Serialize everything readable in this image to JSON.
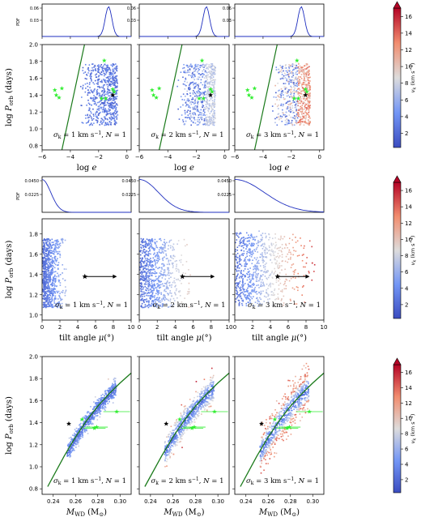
{
  "colors": {
    "low": "#3b4cc0",
    "mid": "#dddcdc",
    "high": "#b40426",
    "pdf_line": "#1f2fbf",
    "green_line": "#1a7a1a",
    "green_star": "#33ee33",
    "black_star": "#000000"
  },
  "colorbar": {
    "label": "v",
    "label_sub": "k",
    "label_unit": "(km s",
    "label_exp": "−1",
    "label_close": ")",
    "ticks": [
      "2",
      "4",
      "6",
      "8",
      "10",
      "12",
      "14",
      "16"
    ],
    "range": [
      0.3,
      17
    ]
  },
  "rows": [
    {
      "name": "eccentricity",
      "xlabel": {
        "main": "log",
        "var": "e"
      },
      "ylabel": {
        "main": "log",
        "var": "P",
        "sub": "orb",
        "unit": "(days)"
      },
      "pdf_label": "PDF",
      "pdf_ticks": [
        "0.06",
        "0.03"
      ],
      "yticks": [
        "2.0",
        "1.8",
        "1.6",
        "1.4",
        "1.2",
        "1.0",
        "0.8"
      ],
      "xticks": [
        "−6",
        "−4",
        "−2",
        "0"
      ],
      "pdf_xticks": [
        "",
        "",
        "",
        ""
      ]
    },
    {
      "name": "tilt",
      "xlabel": {
        "main": "tilt angle",
        "var": "μ",
        "unit": "(°)"
      },
      "ylabel": {
        "main": "log",
        "var": "P",
        "sub": "orb",
        "unit": "(days)"
      },
      "pdf_label": "PDF",
      "pdf_ticks": [
        "0.0450",
        "0.0225"
      ],
      "yticks": [
        "1.8",
        "1.6",
        "1.4",
        "1.2",
        "1.0"
      ],
      "xticks": [
        "0",
        "2",
        "4",
        "6",
        "8",
        "10"
      ]
    },
    {
      "name": "wd_mass",
      "xlabel": {
        "main": "M",
        "sub": "WD",
        "unit": "(M",
        "unit_sub": "⊙",
        "close": ")"
      },
      "ylabel": {
        "main": "log",
        "var": "P",
        "sub": "orb",
        "unit": "(days)"
      },
      "yticks": [
        "2.0",
        "1.8",
        "1.6",
        "1.4",
        "1.2",
        "1.0",
        "0.8"
      ],
      "xticks": [
        "0.24",
        "0.26",
        "0.28",
        "0.30"
      ]
    }
  ],
  "panels": [
    {
      "sigma": "1",
      "N": "1"
    },
    {
      "sigma": "2",
      "N": "1"
    },
    {
      "sigma": "3",
      "N": "1"
    }
  ],
  "annotation": {
    "sigma_sym": "σ",
    "sigma_sub": "k",
    "equals": " = ",
    "unit": " km s",
    "unit_exp": "−1",
    "sep": ",  ",
    "n_label": "N",
    "n_eq": " = "
  },
  "chart_data": [
    {
      "type": "scatter",
      "title": "",
      "xlabel": "log e",
      "ylabel": "log P_orb (days)",
      "xlim": [
        -6,
        0.3
      ],
      "ylim": [
        0.75,
        2.0
      ],
      "pdf_ylim": [
        0,
        0.06
      ],
      "color_by": "v_k (km s^-1)",
      "panels": [
        {
          "sigma_k": 1,
          "N": 1
        },
        {
          "sigma_k": 2,
          "N": 1
        },
        {
          "sigma_k": 3,
          "N": 1
        }
      ],
      "cloud": {
        "x_range": [
          -3.5,
          -0.7
        ],
        "y_range": [
          1.05,
          1.78
        ]
      },
      "pdf_peak_x": -1.3,
      "green_line": {
        "x": [
          -4.6,
          -3.0
        ],
        "y": [
          0.75,
          2.0
        ]
      },
      "green_stars": [
        {
          "x": -1.6,
          "y": 1.81
        },
        {
          "x": -5.1,
          "y": 1.46
        },
        {
          "x": -4.6,
          "y": 1.48
        },
        {
          "x": -5.0,
          "y": 1.4
        },
        {
          "x": -4.8,
          "y": 1.37
        },
        {
          "x": -1.8,
          "y": 1.36
        },
        {
          "x": -1.5,
          "y": 1.36
        },
        {
          "x": -1.0,
          "y": 1.47
        },
        {
          "x": -0.9,
          "y": 1.44
        }
      ],
      "black_star": {
        "x": -1.0,
        "y": 1.4
      }
    },
    {
      "type": "scatter",
      "title": "",
      "xlabel": "tilt angle μ(°)",
      "ylabel": "log P_orb (days)",
      "xlim": [
        0,
        10
      ],
      "ylim": [
        0.95,
        1.95
      ],
      "pdf_ylim": [
        0,
        0.045
      ],
      "color_by": "v_k (km s^-1)",
      "panels": [
        {
          "sigma_k": 1,
          "N": 1
        },
        {
          "sigma_k": 2,
          "N": 1
        },
        {
          "sigma_k": 3,
          "N": 1
        }
      ],
      "cloud_max_tilt": [
        2.5,
        5.5,
        8.5
      ],
      "black_star": {
        "x": 4.8,
        "y": 1.38,
        "arrow_to": 8.4
      }
    },
    {
      "type": "scatter",
      "title": "",
      "xlabel": "M_WD (M_sun)",
      "ylabel": "log P_orb (days)",
      "xlim": [
        0.23,
        0.31
      ],
      "ylim": [
        0.75,
        2.0
      ],
      "color_by": "v_k (km s^-1)",
      "panels": [
        {
          "sigma_k": 1,
          "N": 1
        },
        {
          "sigma_k": 2,
          "N": 1
        },
        {
          "sigma_k": 3,
          "N": 1
        }
      ],
      "model_curve": [
        {
          "x": 0.235,
          "y": 0.82
        },
        {
          "x": 0.25,
          "y": 1.1
        },
        {
          "x": 0.26,
          "y": 1.27
        },
        {
          "x": 0.27,
          "y": 1.42
        },
        {
          "x": 0.28,
          "y": 1.55
        },
        {
          "x": 0.29,
          "y": 1.66
        },
        {
          "x": 0.3,
          "y": 1.76
        },
        {
          "x": 0.31,
          "y": 1.85
        }
      ],
      "band": {
        "x_range": [
          0.252,
          0.296
        ]
      },
      "green_stars": [
        {
          "x": 0.266,
          "y": 1.43,
          "xerr": 0.0
        },
        {
          "x": 0.277,
          "y": 1.35,
          "xerr": 0.01
        },
        {
          "x": 0.279,
          "y": 1.36,
          "xerr": 0.01
        },
        {
          "x": 0.297,
          "y": 1.5,
          "xerr": 0.012
        }
      ],
      "black_star": {
        "x": 0.254,
        "y": 1.39
      }
    }
  ]
}
